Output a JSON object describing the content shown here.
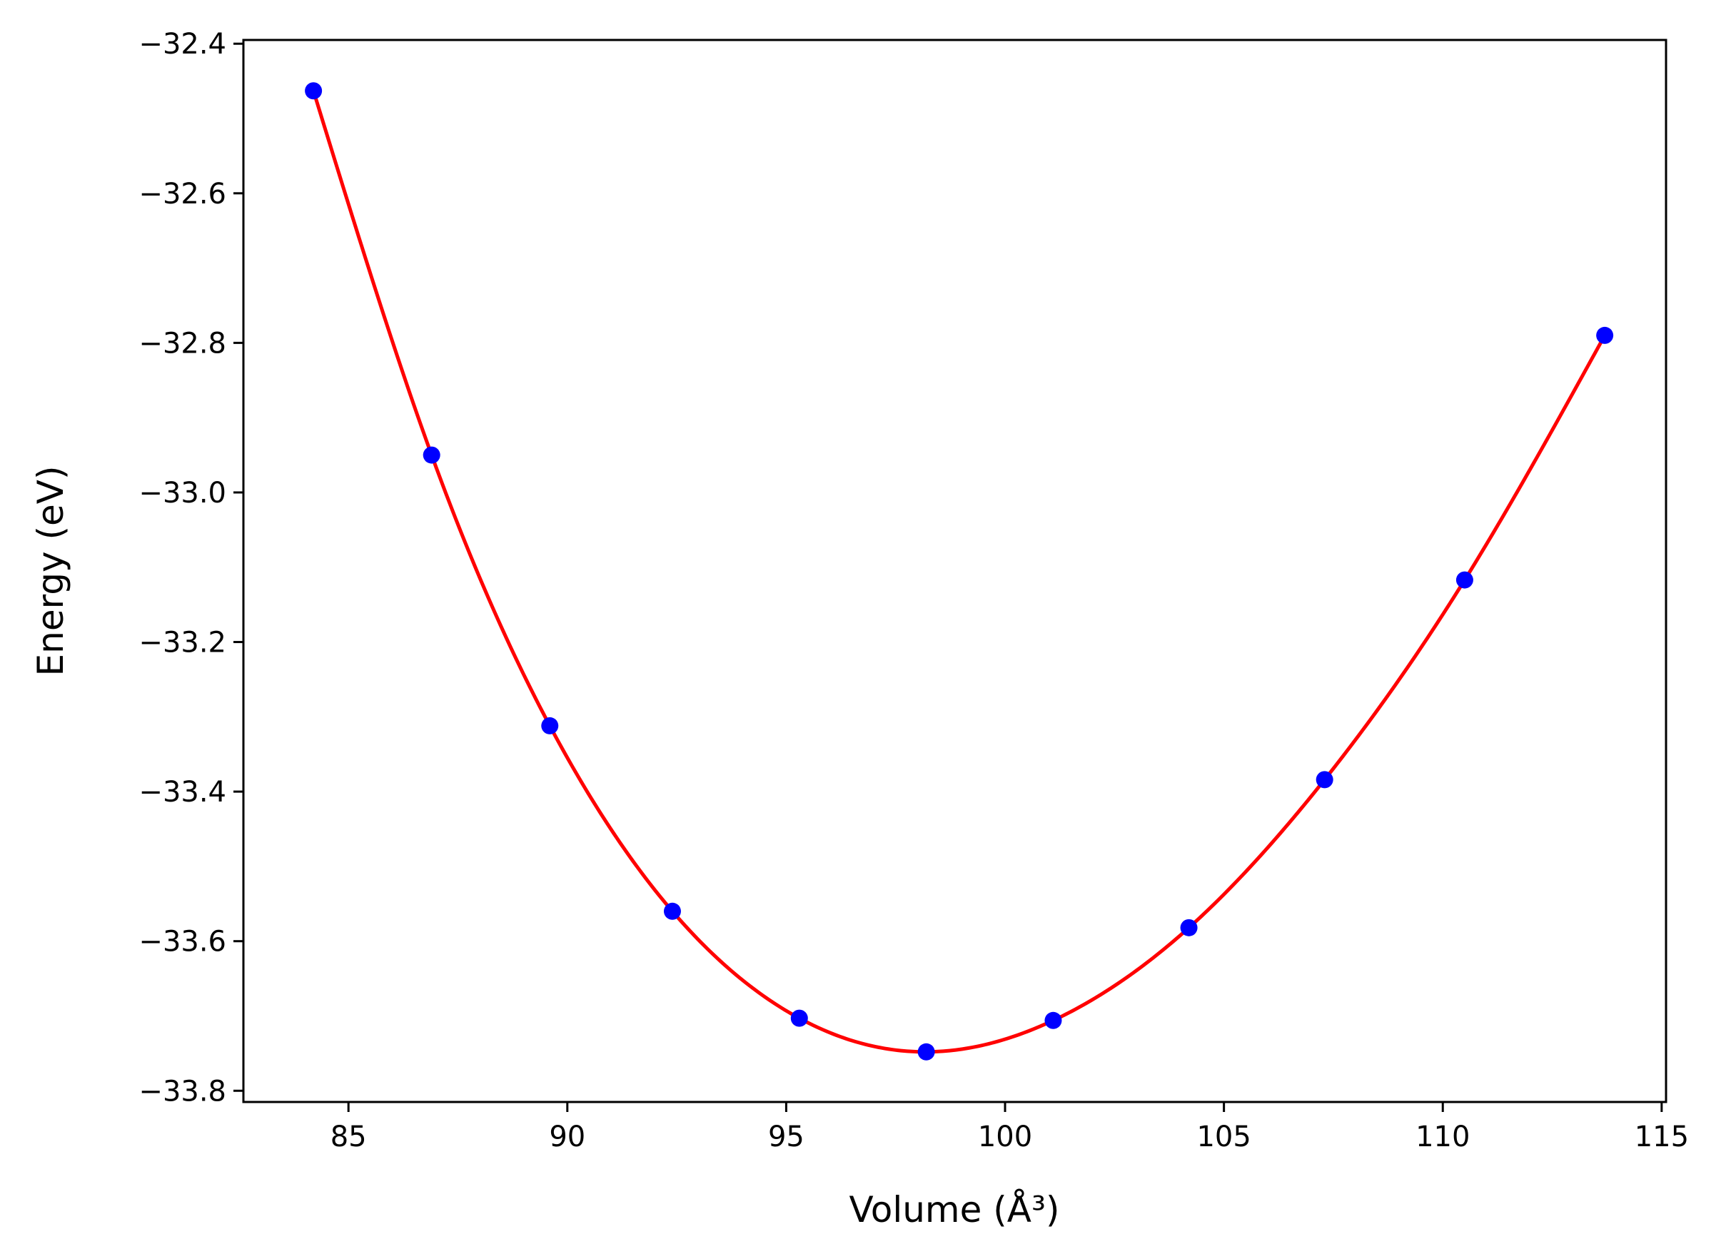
{
  "chart_data": {
    "type": "scatter",
    "xlabel": "Volume (Å³)",
    "ylabel": "Energy (eV)",
    "xlim": [
      82.6,
      115.1
    ],
    "ylim": [
      -33.815,
      -32.395
    ],
    "xticks": [
      {
        "value": 85,
        "label": "85"
      },
      {
        "value": 90,
        "label": "90"
      },
      {
        "value": 95,
        "label": "95"
      },
      {
        "value": 100,
        "label": "100"
      },
      {
        "value": 105,
        "label": "105"
      },
      {
        "value": 110,
        "label": "110"
      },
      {
        "value": 115,
        "label": "115"
      }
    ],
    "yticks": [
      {
        "value": -32.4,
        "label": "−32.4"
      },
      {
        "value": -32.6,
        "label": "−32.6"
      },
      {
        "value": -32.8,
        "label": "−32.8"
      },
      {
        "value": -33.0,
        "label": "−33.0"
      },
      {
        "value": -33.2,
        "label": "−33.2"
      },
      {
        "value": -33.4,
        "label": "−33.4"
      },
      {
        "value": -33.6,
        "label": "−33.6"
      },
      {
        "value": -33.8,
        "label": "−33.8"
      }
    ],
    "grid": false,
    "series": [
      {
        "kind": "points",
        "color": "#0000ff",
        "x": [
          84.2,
          86.9,
          89.6,
          92.4,
          95.3,
          98.2,
          101.1,
          104.2,
          107.3,
          110.5,
          113.7
        ],
        "y": [
          -32.463,
          -32.95,
          -33.312,
          -33.56,
          -33.703,
          -33.748,
          -33.706,
          -33.582,
          -33.384,
          -33.117,
          -32.79
        ]
      },
      {
        "kind": "fitted-curve",
        "color": "#ff0000",
        "x": [
          84.2,
          86.9,
          89.6,
          92.4,
          95.3,
          98.2,
          101.1,
          104.2,
          107.3,
          110.5,
          113.7
        ],
        "y": [
          -32.463,
          -32.95,
          -33.312,
          -33.56,
          -33.703,
          -33.748,
          -33.706,
          -33.582,
          -33.384,
          -33.117,
          -32.79
        ]
      }
    ]
  }
}
